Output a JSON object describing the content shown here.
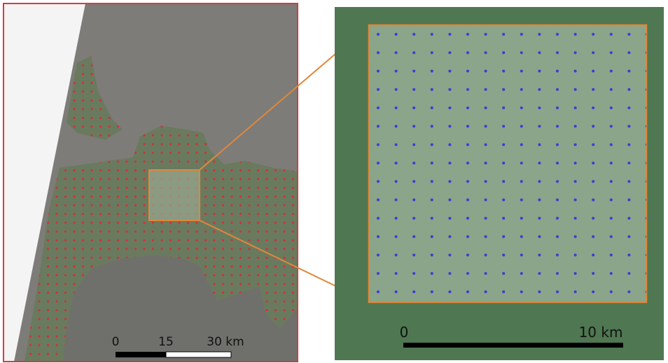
{
  "left_map": {
    "scale_bar": {
      "labels": [
        "0",
        "15",
        "30 km"
      ]
    }
  },
  "right_map": {
    "scale_bar": {
      "labels": [
        "0",
        "10 km"
      ]
    }
  }
}
